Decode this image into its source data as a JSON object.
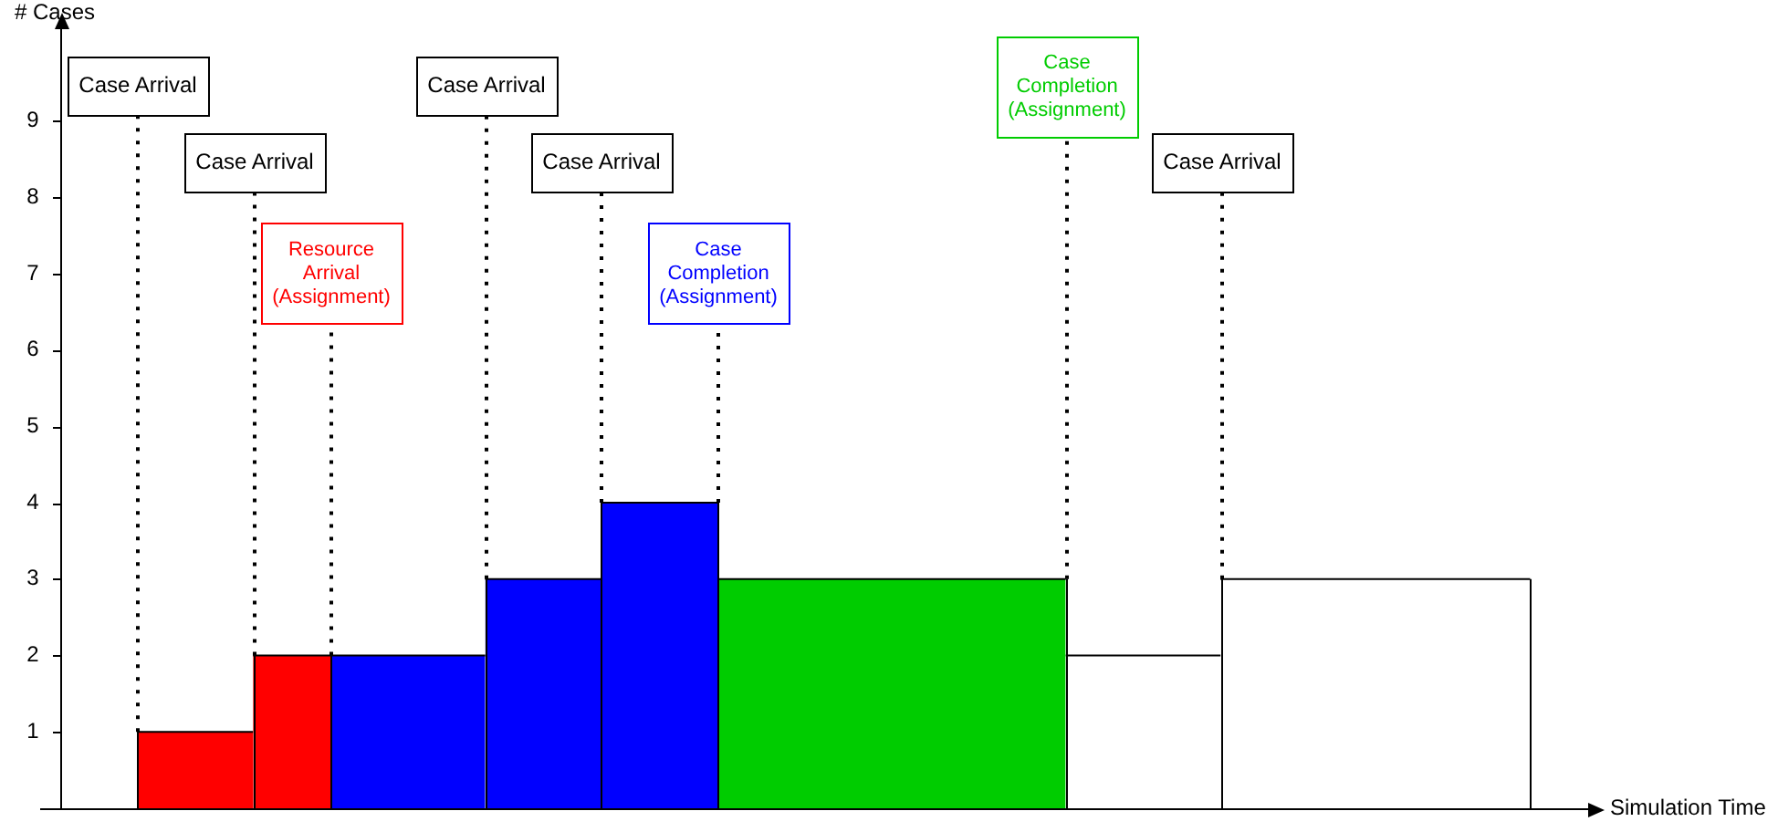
{
  "chart_data": {
    "type": "area",
    "xlabel": "Simulation Time",
    "ylabel": "# Cases",
    "categories": [
      null,
      null,
      null,
      null,
      null,
      null,
      null,
      null,
      null,
      null,
      null,
      null,
      null,
      null,
      null,
      null,
      null,
      null,
      null,
      null,
      null,
      null,
      null,
      null,
      null,
      null,
      null,
      null,
      null,
      null,
      null,
      null,
      null,
      null,
      null,
      null,
      null,
      null,
      null,
      null
    ],
    "series": [
      {
        "color": "#ff0000",
        "values": [
          null,
          null,
          1,
          1,
          1,
          1,
          null,
          null,
          null,
          null,
          null,
          null,
          null,
          null,
          null,
          null,
          null,
          null,
          null,
          null,
          null,
          null,
          null,
          null,
          null,
          null,
          null,
          null,
          null,
          null,
          null,
          null,
          null,
          null,
          null,
          null,
          null,
          null,
          null,
          null
        ]
      },
      {
        "color": "#ff0000",
        "values": [
          null,
          null,
          null,
          null,
          null,
          2,
          2,
          2,
          null,
          null,
          null,
          null,
          null,
          null,
          null,
          null,
          null,
          null,
          null,
          null,
          null,
          null,
          null,
          null,
          null,
          null,
          null,
          null,
          null,
          null,
          null,
          null,
          null,
          null,
          null,
          null,
          null,
          null,
          null,
          null
        ]
      },
      {
        "color": "#0000ff",
        "values": [
          null,
          null,
          null,
          null,
          null,
          null,
          null,
          2,
          2,
          2,
          2,
          2,
          null,
          null,
          null,
          null,
          null,
          null,
          null,
          null,
          null,
          null,
          null,
          null,
          null,
          null,
          null,
          null,
          null,
          null,
          null,
          null,
          null,
          null,
          null,
          null,
          null,
          null,
          null,
          null
        ]
      },
      {
        "color": "#0000ff",
        "values": [
          null,
          null,
          null,
          null,
          null,
          null,
          null,
          null,
          null,
          null,
          null,
          3,
          3,
          3,
          3,
          null,
          null,
          null,
          null,
          null,
          null,
          null,
          null,
          null,
          null,
          null,
          null,
          null,
          null,
          null,
          null,
          null,
          null,
          null,
          null,
          null,
          null,
          null,
          null,
          null
        ]
      },
      {
        "color": "#0000ff",
        "values": [
          null,
          null,
          null,
          null,
          null,
          null,
          null,
          null,
          null,
          null,
          null,
          null,
          null,
          null,
          4,
          4,
          4,
          4,
          null,
          null,
          null,
          null,
          null,
          null,
          null,
          null,
          null,
          null,
          null,
          null,
          null,
          null,
          null,
          null,
          null,
          null,
          null,
          null,
          null,
          null
        ]
      },
      {
        "color": "#00cc00",
        "values": [
          null,
          null,
          null,
          null,
          null,
          null,
          null,
          null,
          null,
          null,
          null,
          null,
          null,
          null,
          null,
          null,
          null,
          3,
          3,
          3,
          3,
          3,
          3,
          3,
          3,
          3,
          3,
          null,
          null,
          null,
          null,
          null,
          null,
          null,
          null,
          null,
          null,
          null,
          null,
          null
        ]
      },
      {
        "color": "#ffffff",
        "values": [
          null,
          null,
          null,
          null,
          null,
          null,
          null,
          null,
          null,
          null,
          null,
          null,
          null,
          null,
          null,
          null,
          null,
          null,
          null,
          null,
          null,
          null,
          null,
          null,
          null,
          null,
          2,
          2,
          2,
          2,
          2,
          null,
          null,
          null,
          null,
          null,
          null,
          null,
          null,
          null
        ]
      },
      {
        "color": "#ffffff",
        "values": [
          null,
          null,
          null,
          null,
          null,
          null,
          null,
          null,
          null,
          null,
          null,
          null,
          null,
          null,
          null,
          null,
          null,
          null,
          null,
          null,
          null,
          null,
          null,
          null,
          null,
          null,
          null,
          null,
          null,
          null,
          3,
          3,
          3,
          3,
          3,
          3,
          3,
          3,
          3,
          null
        ]
      }
    ],
    "ylim": [
      0,
      10.2
    ],
    "yticks": [
      1,
      2,
      3,
      4,
      5,
      6,
      7,
      8,
      9
    ],
    "tick_labels": "y",
    "ref_lines": [
      {
        "axis": "x",
        "label": "Case Arrival",
        "color": "#000000",
        "line_style": "dotted"
      },
      {
        "axis": "x",
        "label": "Case Arrival",
        "color": "#000000",
        "line_style": "dotted"
      },
      {
        "axis": "x",
        "label": "Resource\nArrival\n(Assignment)",
        "color": "#ff0000",
        "line_style": "dotted"
      },
      {
        "axis": "x",
        "label": "Case Arrival",
        "color": "#000000",
        "line_style": "dotted"
      },
      {
        "axis": "x",
        "label": "Case Arrival",
        "color": "#000000",
        "line_style": "dotted"
      },
      {
        "axis": "x",
        "label": "Case\nCompletion\n(Assignment)",
        "color": "#0000ff",
        "line_style": "dotted"
      },
      {
        "axis": "x",
        "label": "Case\nCompletion\n(Assignment)",
        "color": "#00cc00",
        "line_style": "dotted"
      },
      {
        "axis": "x",
        "label": "Case Arrival",
        "color": "#000000",
        "line_style": "dotted"
      }
    ]
  }
}
